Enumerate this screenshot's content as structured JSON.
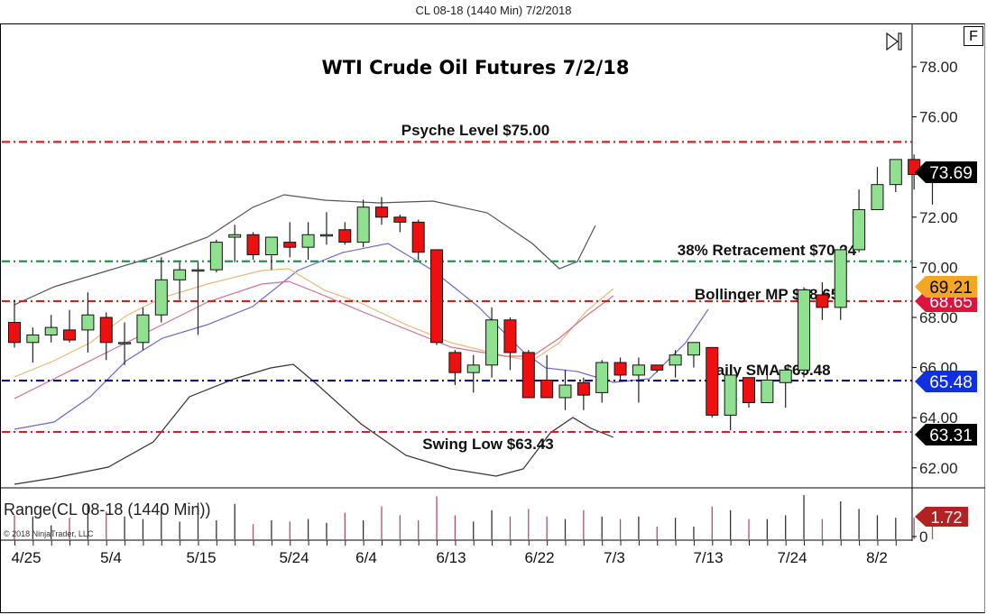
{
  "window": {
    "caption": "CL 08-18 (1440 Min)  7/2/2018",
    "f_button_label": "F"
  },
  "chart_data": {
    "type": "candlestick",
    "title": "WTI Crude Oil Futures 7/2/18",
    "instrument": "CL 08-18 (1440 Min)",
    "xlabel": "",
    "ylabel": "",
    "ylim": [
      61.3,
      79.2
    ],
    "y_ticks": [
      "78.00",
      "76.00",
      "72.00",
      "70.00",
      "68.00",
      "66.00",
      "64.00",
      "62.00"
    ],
    "x_ticks": [
      "4/25",
      "5/4",
      "5/15",
      "5/24",
      "6/4",
      "6/13",
      "6/22",
      "7/3",
      "7/13",
      "7/24",
      "8/2"
    ],
    "grid": false,
    "candles": [
      {
        "o": 67.8,
        "h": 68.7,
        "l": 66.8,
        "c": 67.0
      },
      {
        "o": 67.0,
        "h": 67.6,
        "l": 66.2,
        "c": 67.3
      },
      {
        "o": 67.3,
        "h": 68.1,
        "l": 67.0,
        "c": 67.6
      },
      {
        "o": 67.5,
        "h": 68.3,
        "l": 67.0,
        "c": 67.1
      },
      {
        "o": 67.5,
        "h": 69.0,
        "l": 66.6,
        "c": 68.1
      },
      {
        "o": 68.0,
        "h": 68.2,
        "l": 66.3,
        "c": 67.0
      },
      {
        "o": 67.0,
        "h": 67.8,
        "l": 66.1,
        "c": 67.0
      },
      {
        "o": 67.0,
        "h": 68.4,
        "l": 66.7,
        "c": 68.1
      },
      {
        "o": 68.1,
        "h": 70.4,
        "l": 67.8,
        "c": 69.5
      },
      {
        "o": 69.5,
        "h": 70.2,
        "l": 68.7,
        "c": 69.9
      },
      {
        "o": 69.9,
        "h": 70.2,
        "l": 67.3,
        "c": 69.9
      },
      {
        "o": 69.9,
        "h": 71.1,
        "l": 69.8,
        "c": 71.0
      },
      {
        "o": 71.2,
        "h": 71.7,
        "l": 70.2,
        "c": 71.3
      },
      {
        "o": 71.3,
        "h": 71.4,
        "l": 70.3,
        "c": 70.5
      },
      {
        "o": 70.5,
        "h": 70.7,
        "l": 69.9,
        "c": 71.2
      },
      {
        "o": 71.0,
        "h": 71.8,
        "l": 70.4,
        "c": 70.8
      },
      {
        "o": 70.8,
        "h": 71.8,
        "l": 70.3,
        "c": 71.3
      },
      {
        "o": 71.3,
        "h": 72.2,
        "l": 70.9,
        "c": 71.3
      },
      {
        "o": 71.5,
        "h": 71.8,
        "l": 70.9,
        "c": 71.0
      },
      {
        "o": 71.0,
        "h": 72.7,
        "l": 70.8,
        "c": 72.4
      },
      {
        "o": 72.4,
        "h": 72.8,
        "l": 71.7,
        "c": 72.0
      },
      {
        "o": 72.0,
        "h": 72.1,
        "l": 71.4,
        "c": 71.8
      },
      {
        "o": 71.8,
        "h": 71.9,
        "l": 70.3,
        "c": 70.6
      },
      {
        "o": 70.7,
        "h": 70.7,
        "l": 66.9,
        "c": 67.0
      },
      {
        "o": 66.6,
        "h": 66.7,
        "l": 65.3,
        "c": 65.8
      },
      {
        "o": 65.8,
        "h": 66.5,
        "l": 65.0,
        "c": 66.1
      },
      {
        "o": 66.1,
        "h": 68.4,
        "l": 65.6,
        "c": 67.9
      },
      {
        "o": 67.9,
        "h": 68.0,
        "l": 65.9,
        "c": 66.6
      },
      {
        "o": 66.6,
        "h": 66.7,
        "l": 65.2,
        "c": 64.8
      },
      {
        "o": 65.5,
        "h": 66.5,
        "l": 64.9,
        "c": 64.8
      },
      {
        "o": 64.8,
        "h": 65.9,
        "l": 64.3,
        "c": 65.3
      },
      {
        "o": 65.4,
        "h": 65.6,
        "l": 64.3,
        "c": 64.9
      },
      {
        "o": 65.0,
        "h": 66.3,
        "l": 64.6,
        "c": 66.2
      },
      {
        "o": 66.2,
        "h": 66.4,
        "l": 65.5,
        "c": 65.7
      },
      {
        "o": 65.7,
        "h": 66.4,
        "l": 64.6,
        "c": 66.1
      },
      {
        "o": 66.1,
        "h": 66.1,
        "l": 65.8,
        "c": 65.9
      },
      {
        "o": 66.1,
        "h": 66.7,
        "l": 65.6,
        "c": 66.5
      },
      {
        "o": 66.5,
        "h": 66.8,
        "l": 66.0,
        "c": 67.0
      },
      {
        "o": 66.8,
        "h": 66.8,
        "l": 64.0,
        "c": 64.1
      },
      {
        "o": 64.1,
        "h": 65.8,
        "l": 63.5,
        "c": 65.7
      },
      {
        "o": 65.6,
        "h": 65.6,
        "l": 64.4,
        "c": 64.6
      },
      {
        "o": 64.6,
        "h": 65.8,
        "l": 64.7,
        "c": 65.5
      },
      {
        "o": 65.4,
        "h": 65.8,
        "l": 64.4,
        "c": 65.9
      },
      {
        "o": 65.9,
        "h": 69.2,
        "l": 65.6,
        "c": 69.1
      },
      {
        "o": 68.9,
        "h": 69.4,
        "l": 67.9,
        "c": 68.4
      },
      {
        "o": 68.4,
        "h": 70.8,
        "l": 67.9,
        "c": 70.7
      },
      {
        "o": 70.7,
        "h": 73.1,
        "l": 70.6,
        "c": 72.3
      },
      {
        "o": 72.3,
        "h": 74.0,
        "l": 72.3,
        "c": 73.3
      },
      {
        "o": 73.3,
        "h": 74.0,
        "l": 73.0,
        "c": 74.3
      },
      {
        "o": 74.3,
        "h": 74.5,
        "l": 73.1,
        "c": 73.7
      },
      {
        "o": 73.7,
        "h": 74.0,
        "l": 72.5,
        "c": 73.69
      }
    ],
    "indicators": [
      {
        "name": "Bollinger Upper",
        "color": "#555555"
      },
      {
        "name": "Bollinger Lower",
        "color": "#333333"
      },
      {
        "name": "Daily SMA",
        "color": "#6a6acd"
      },
      {
        "name": "EMA fast",
        "color": "#f0c080"
      },
      {
        "name": "EMA mid",
        "color": "#d07090"
      }
    ],
    "levels": [
      {
        "label": "Psyche Level $75.00",
        "price": 75.0,
        "color": "#d42020",
        "style": "dash-dot"
      },
      {
        "label": "38% Retracement $70.24",
        "price": 70.24,
        "color": "#2e8b57",
        "style": "dash-dot"
      },
      {
        "label": "Bollinger MP $68.65",
        "price": 68.65,
        "color": "#d42020",
        "style": "dash-dot"
      },
      {
        "label": "Daily SMA $65.48",
        "price": 65.48,
        "color": "#0a0a8c",
        "style": "dash-dot"
      },
      {
        "label": "Swing Low $63.43",
        "price": 63.43,
        "color": "#d42020",
        "style": "dash-dot"
      }
    ],
    "price_tags": [
      {
        "value": "73.69",
        "bg": "#000000",
        "fg": "#ffffff",
        "price": 73.69
      },
      {
        "value": "69.21",
        "bg": "#f5a623",
        "fg": "#000000",
        "price": 69.21
      },
      {
        "value": "68.65",
        "bg": "#dc143c",
        "fg": "#ffffff",
        "price": 68.65
      },
      {
        "value": "65.48",
        "bg": "#1030e0",
        "fg": "#ffffff",
        "price": 65.48
      },
      {
        "value": "63.31",
        "bg": "#000000",
        "fg": "#ffffff",
        "price": 63.31
      }
    ],
    "range_panel": {
      "title": "Range(CL 08-18 (1440 Min))",
      "copyright": "© 2018 NinjaTrader, LLC",
      "current_value": "1.72",
      "current_tag_color": "#b22222",
      "y_tick": "0",
      "values": [
        1.9,
        1.8,
        1.1,
        1.7,
        2.7,
        2.2,
        1.8,
        1.6,
        2.6,
        1.4,
        2.9,
        1.5,
        2.8,
        1.2,
        1.5,
        1.4,
        1.6,
        1.3,
        2.1,
        1.5,
        2.6,
        1.9,
        1.5,
        3.4,
        1.9,
        1.4,
        2.3,
        1.8,
        2.4,
        1.8,
        1.6,
        2.3,
        1.8,
        1.6,
        1.8,
        1.0,
        1.7,
        1.0,
        2.6,
        2.3,
        1.6,
        1.6,
        1.9,
        3.5,
        1.6,
        3.0,
        2.4,
        1.9,
        1.7,
        1.7,
        1.72
      ]
    }
  }
}
